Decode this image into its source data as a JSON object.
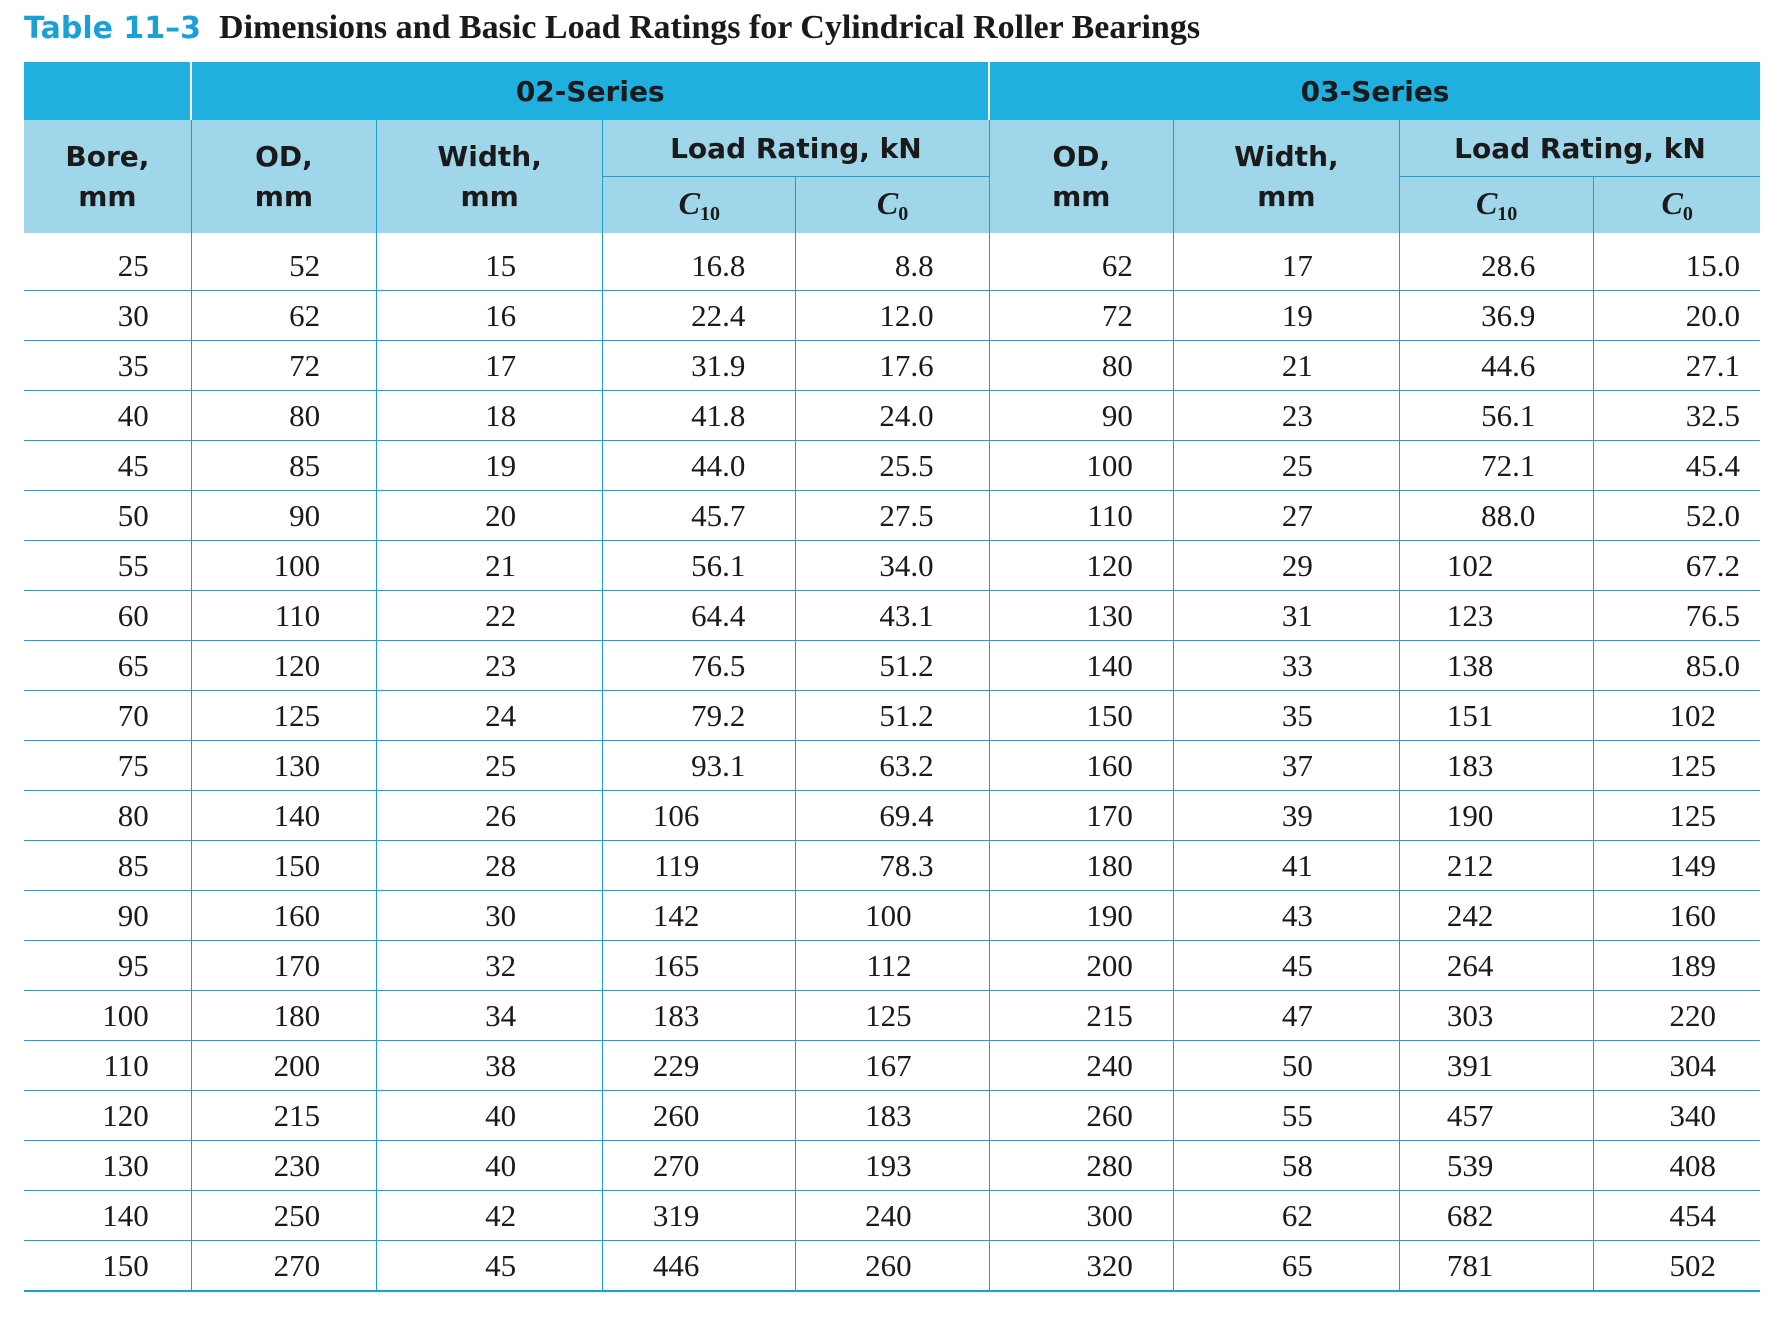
{
  "caption": {
    "number": "Table 11–3",
    "title": "Dimensions and Basic Load Ratings for Cylindrical Roller Bearings"
  },
  "header": {
    "series_02": "02-Series",
    "series_03": "03-Series",
    "bore_line1": "Bore,",
    "bore_line2": "mm",
    "od_line1": "OD,",
    "od_line2": "mm",
    "width_line1": "Width,",
    "width_line2": "mm",
    "load_rating": "Load Rating, kN",
    "c10_symbol": "C",
    "c10_sub": "10",
    "c0_symbol": "C",
    "c0_sub": "0"
  },
  "rows": [
    [
      "25",
      "52",
      "15",
      "16.8",
      "8.8",
      "62",
      "17",
      "28.6",
      "15.0"
    ],
    [
      "30",
      "62",
      "16",
      "22.4",
      "12.0",
      "72",
      "19",
      "36.9",
      "20.0"
    ],
    [
      "35",
      "72",
      "17",
      "31.9",
      "17.6",
      "80",
      "21",
      "44.6",
      "27.1"
    ],
    [
      "40",
      "80",
      "18",
      "41.8",
      "24.0",
      "90",
      "23",
      "56.1",
      "32.5"
    ],
    [
      "45",
      "85",
      "19",
      "44.0",
      "25.5",
      "100",
      "25",
      "72.1",
      "45.4"
    ],
    [
      "50",
      "90",
      "20",
      "45.7",
      "27.5",
      "110",
      "27",
      "88.0",
      "52.0"
    ],
    [
      "55",
      "100",
      "21",
      "56.1",
      "34.0",
      "120",
      "29",
      "102",
      "67.2"
    ],
    [
      "60",
      "110",
      "22",
      "64.4",
      "43.1",
      "130",
      "31",
      "123",
      "76.5"
    ],
    [
      "65",
      "120",
      "23",
      "76.5",
      "51.2",
      "140",
      "33",
      "138",
      "85.0"
    ],
    [
      "70",
      "125",
      "24",
      "79.2",
      "51.2",
      "150",
      "35",
      "151",
      "102"
    ],
    [
      "75",
      "130",
      "25",
      "93.1",
      "63.2",
      "160",
      "37",
      "183",
      "125"
    ],
    [
      "80",
      "140",
      "26",
      "106",
      "69.4",
      "170",
      "39",
      "190",
      "125"
    ],
    [
      "85",
      "150",
      "28",
      "119",
      "78.3",
      "180",
      "41",
      "212",
      "149"
    ],
    [
      "90",
      "160",
      "30",
      "142",
      "100",
      "190",
      "43",
      "242",
      "160"
    ],
    [
      "95",
      "170",
      "32",
      "165",
      "112",
      "200",
      "45",
      "264",
      "189"
    ],
    [
      "100",
      "180",
      "34",
      "183",
      "125",
      "215",
      "47",
      "303",
      "220"
    ],
    [
      "110",
      "200",
      "38",
      "229",
      "167",
      "240",
      "50",
      "391",
      "304"
    ],
    [
      "120",
      "215",
      "40",
      "260",
      "183",
      "260",
      "55",
      "457",
      "340"
    ],
    [
      "130",
      "230",
      "40",
      "270",
      "193",
      "280",
      "58",
      "539",
      "408"
    ],
    [
      "140",
      "250",
      "42",
      "319",
      "240",
      "300",
      "62",
      "682",
      "454"
    ],
    [
      "150",
      "270",
      "45",
      "446",
      "260",
      "320",
      "65",
      "781",
      "502"
    ]
  ]
}
